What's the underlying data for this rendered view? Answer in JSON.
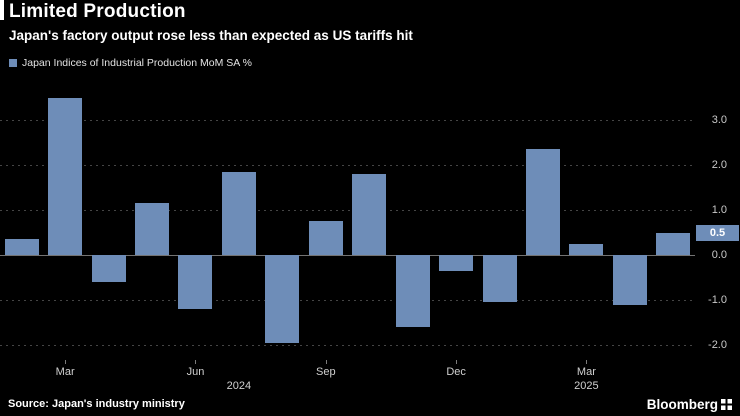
{
  "header": {
    "title": "Limited Production",
    "subtitle": "Japan's factory output rose less than expected as US tariffs hit",
    "legend_label": "Japan Indices of Industrial Production MoM SA %"
  },
  "footer": {
    "source": "Source: Japan's industry ministry",
    "brand": "Bloomberg"
  },
  "colors": {
    "background": "#000000",
    "bar": "#6e8db8",
    "callout_bg": "#6e8db8",
    "callout_text": "#ffffff",
    "grid": "#454545",
    "zero_line": "#737373",
    "axis_text": "#c9c9c9",
    "accent": "#ffffff"
  },
  "chart_data": {
    "type": "bar",
    "title": "Limited Production",
    "subtitle": "Japan's factory output rose less than expected as US tariffs hit",
    "legend": "Japan Indices of Industrial Production MoM SA %",
    "x": [
      "Feb 2024",
      "Mar 2024",
      "Apr 2024",
      "May 2024",
      "Jun 2024",
      "Jul 2024",
      "Aug 2024",
      "Sep 2024",
      "Oct 2024",
      "Nov 2024",
      "Dec 2024",
      "Jan 2025",
      "Feb 2025",
      "Mar 2025",
      "Apr 2025",
      "May 2025"
    ],
    "values": [
      0.35,
      3.5,
      -0.6,
      1.15,
      -1.2,
      1.85,
      -1.95,
      0.75,
      1.8,
      -1.6,
      -0.35,
      -1.05,
      2.35,
      0.25,
      -1.1,
      0.5
    ],
    "last_value": 0.5,
    "last_value_label": "0.5",
    "ylabel": "MoM SA %",
    "xlabel": "",
    "ylim": [
      -2.33,
      3.78
    ],
    "y_ticks": [
      3.0,
      2.0,
      1.0,
      0.0,
      -1.0,
      -2.0
    ],
    "y_tick_labels": [
      "3.0",
      "2.0",
      "1.0",
      "0.0",
      "-1.0",
      "-2.0"
    ],
    "x_tick_labels": [
      {
        "label": "Mar",
        "index": 1
      },
      {
        "label": "Jun",
        "index": 4
      },
      {
        "label": "Sep",
        "index": 7
      },
      {
        "label": "Dec",
        "index": 10
      },
      {
        "label": "Mar",
        "index": 13
      }
    ],
    "year_labels": [
      {
        "label": "2024",
        "index": 5
      },
      {
        "label": "2025",
        "index": 13
      }
    ],
    "grid": "horizontal-dotted",
    "legend_position": "top-left",
    "y_axis_position": "right"
  }
}
